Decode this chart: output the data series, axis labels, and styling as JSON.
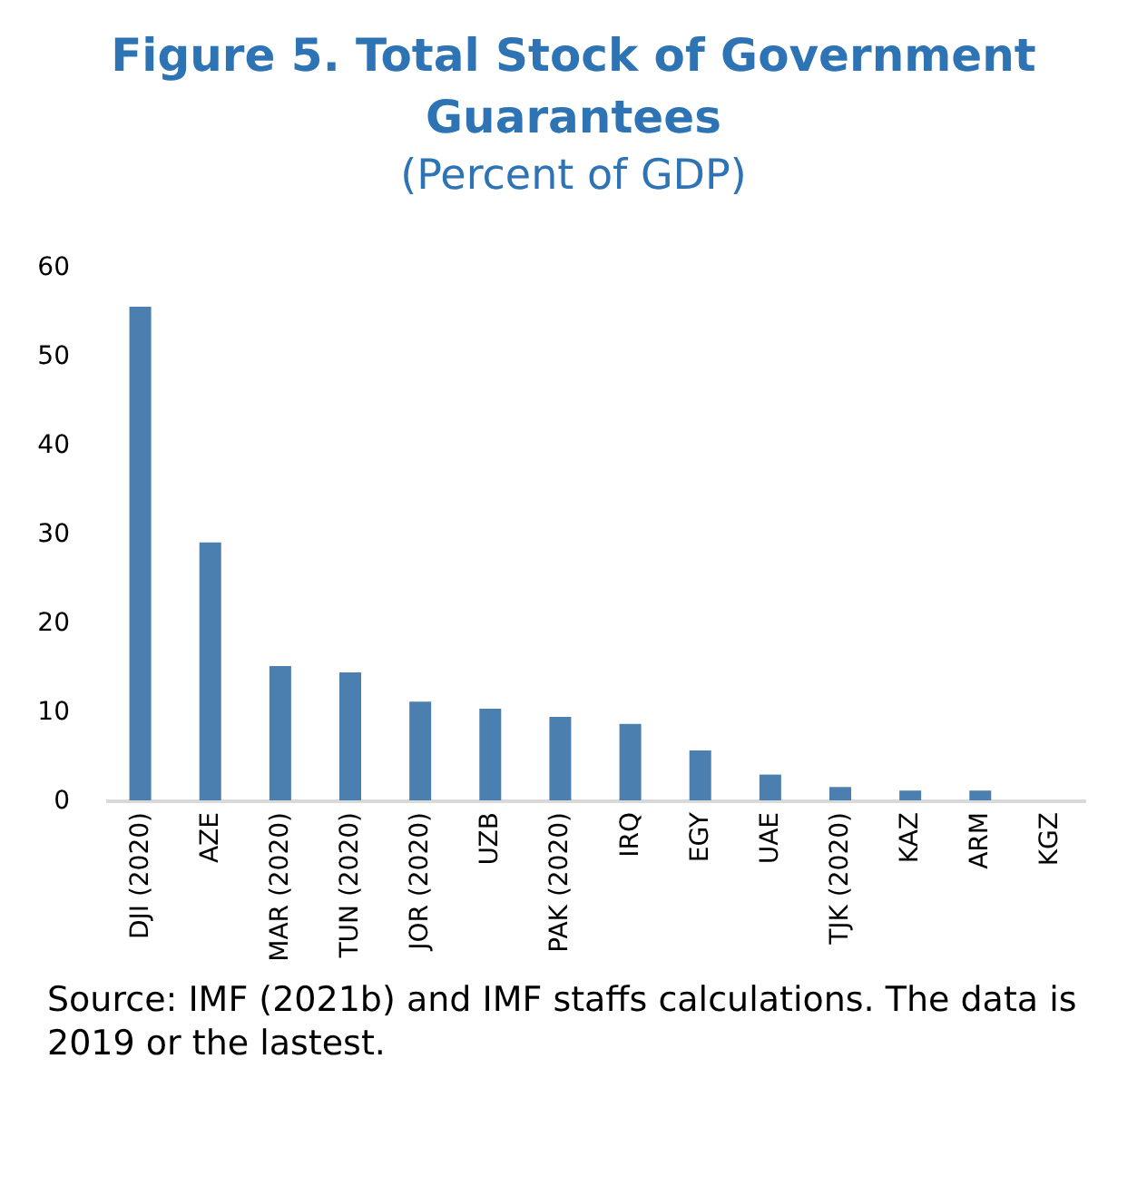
{
  "chart_data": {
    "type": "bar",
    "title": "Figure 5. Total Stock of Government Guarantees",
    "subtitle": "(Percent of GDP)",
    "categories": [
      "DJI (2020)",
      "AZE",
      "MAR (2020)",
      "TUN (2020)",
      "JOR (2020)",
      "UZB",
      "PAK (2020)",
      "IRQ",
      "EGY",
      "UAE",
      "TJK (2020)",
      "KAZ",
      "ARM",
      "KGZ"
    ],
    "values": [
      55.5,
      29,
      15.1,
      14.4,
      11.1,
      10.3,
      9.4,
      8.6,
      5.6,
      2.9,
      1.5,
      1.1,
      1.1,
      0
    ],
    "color": "#4a7fb0",
    "ylim": [
      0,
      60
    ],
    "yticks": [
      0,
      10,
      20,
      30,
      40,
      50,
      60
    ],
    "grid": false,
    "annotations": [
      "Source: IMF (2021b) and IMF staffs calculations. The data is 2019 or the lastest."
    ]
  }
}
